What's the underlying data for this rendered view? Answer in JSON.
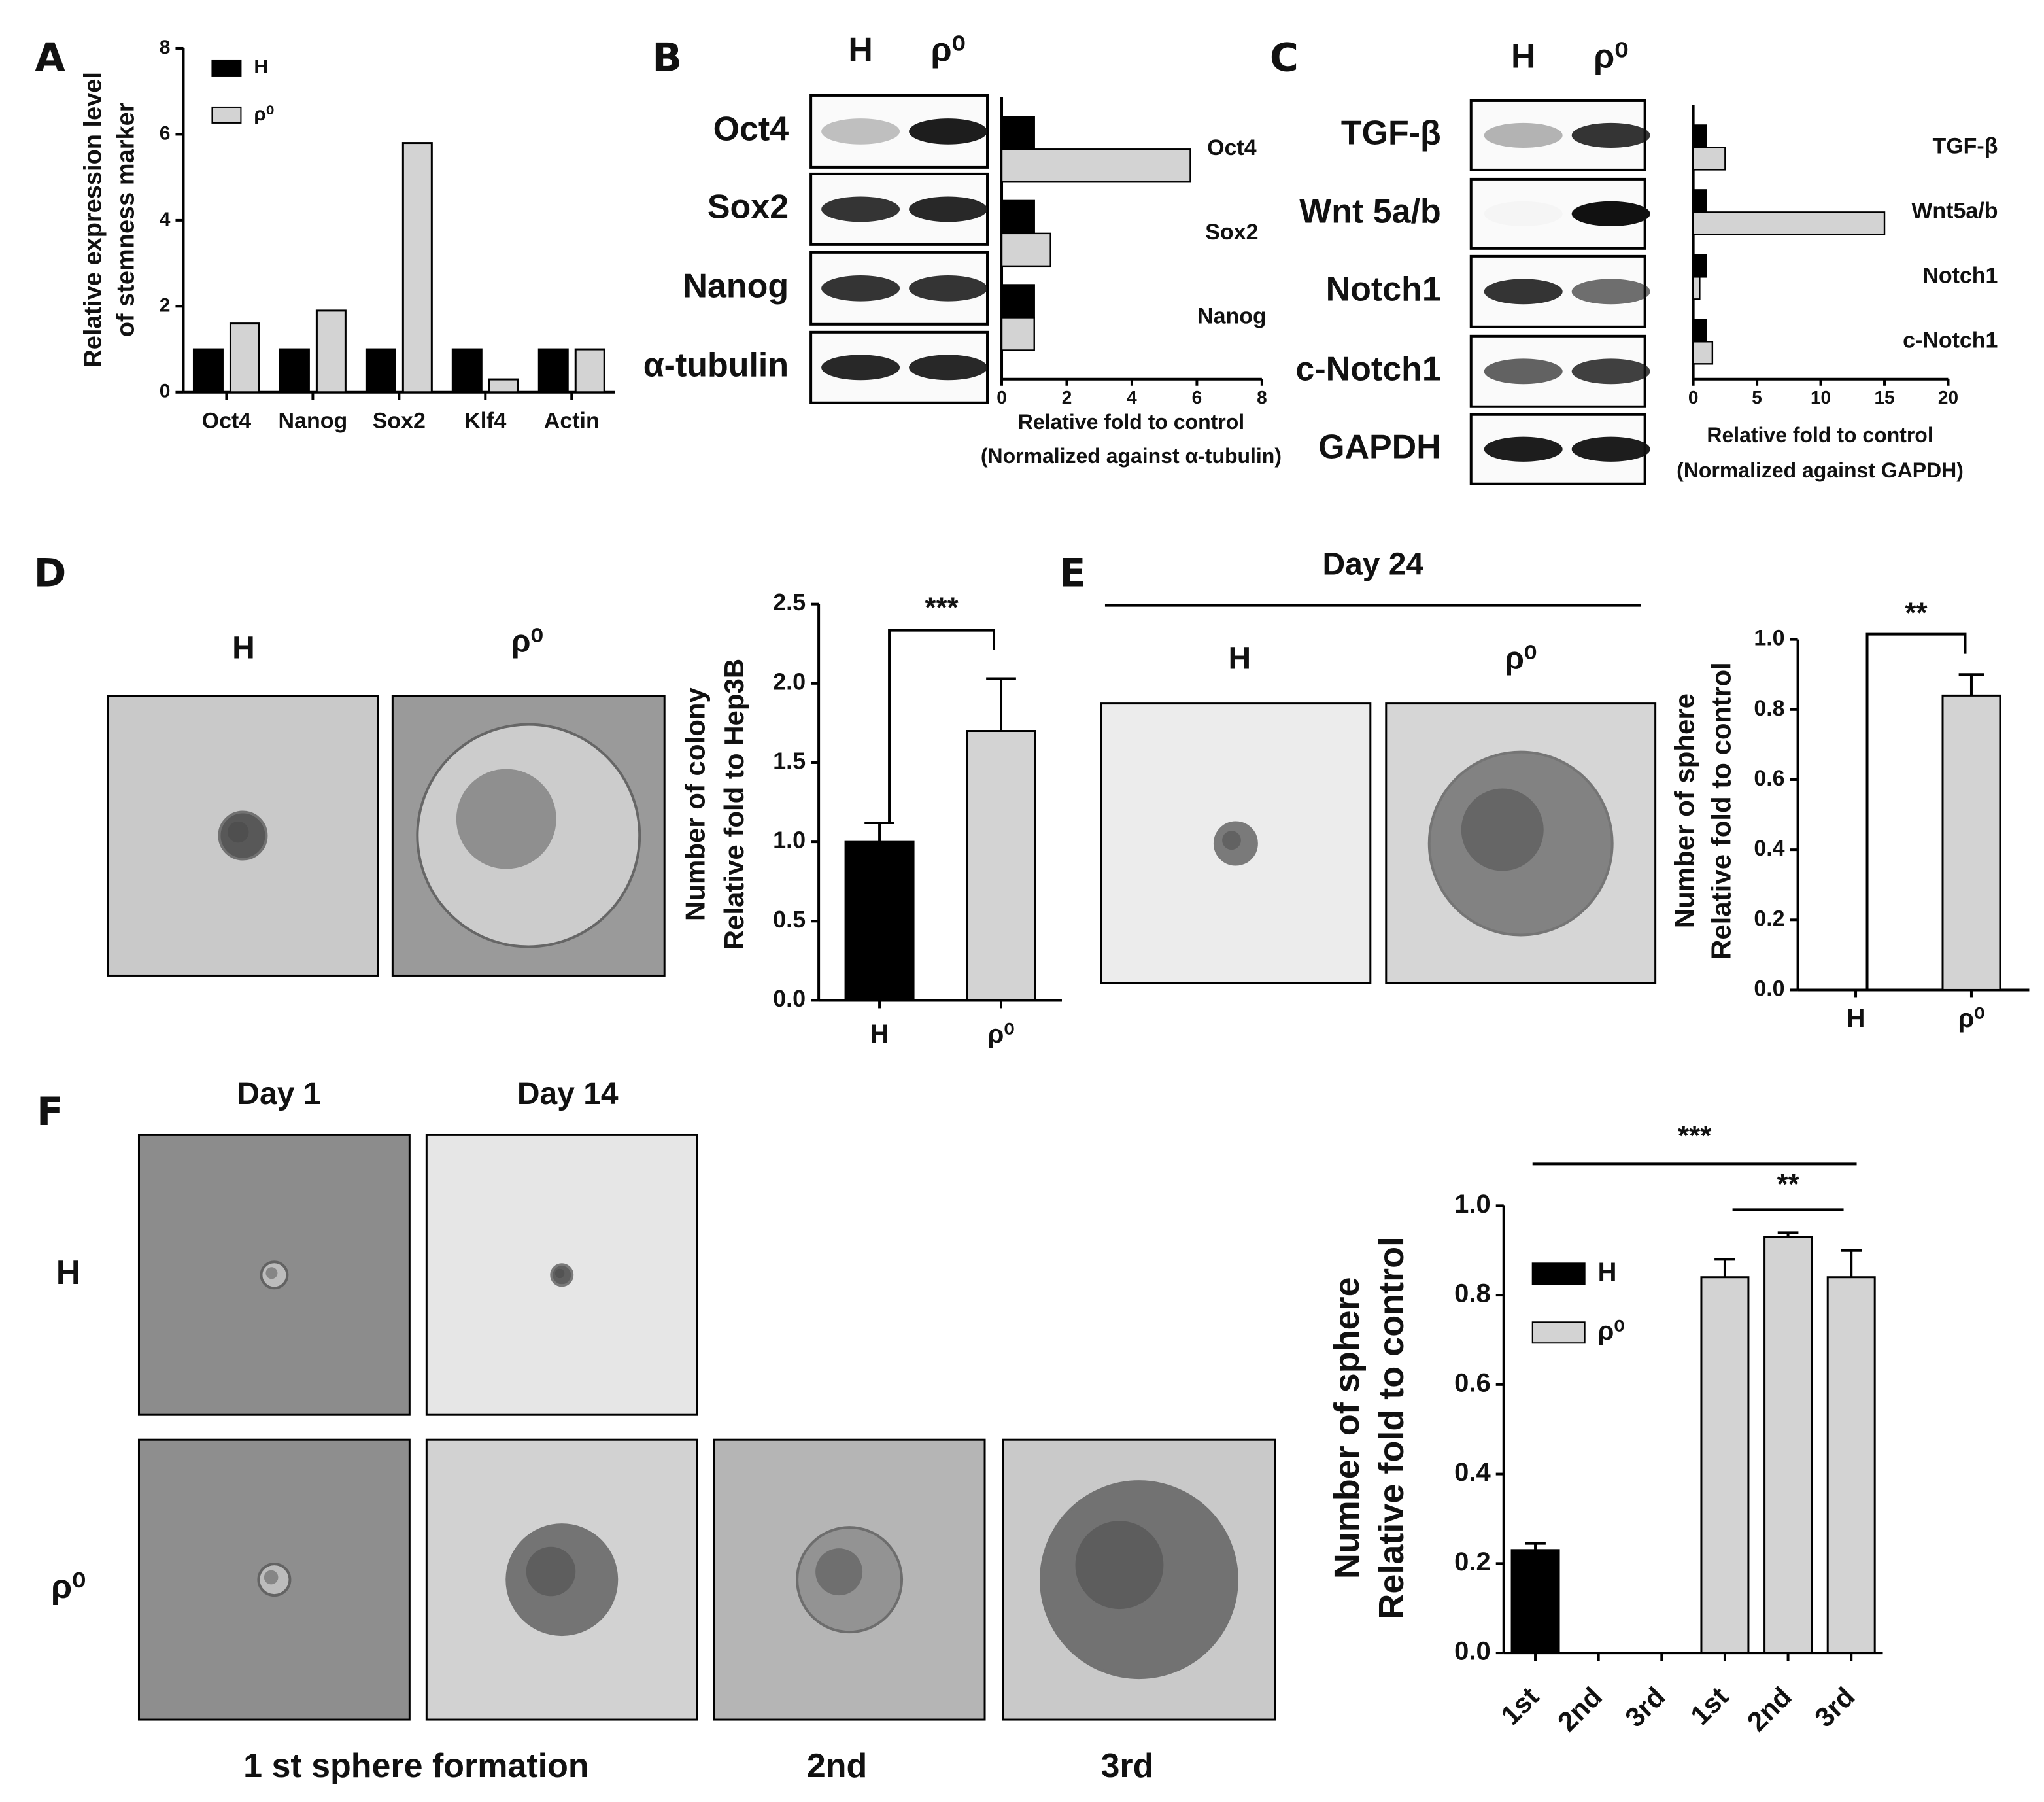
{
  "chart_data": [
    {
      "type": "bar",
      "panel": "A",
      "categories": [
        "Oct4",
        "Nanog",
        "Sox2",
        "Klf4",
        "Actin"
      ],
      "series": [
        {
          "name": "H",
          "color": "#000000",
          "values": [
            1,
            1,
            1,
            1,
            1
          ]
        },
        {
          "name": "ρ⁰",
          "color": "#d3d3d3",
          "values": [
            1.6,
            1.9,
            5.8,
            0.3,
            1.0
          ]
        }
      ],
      "ylim": [
        0,
        8
      ],
      "yticks": [
        0,
        2,
        4,
        6,
        8
      ],
      "ylabel": [
        "Relative expression level",
        "of stemness marker"
      ]
    },
    {
      "type": "barh",
      "panel": "B",
      "categories": [
        "Oct4",
        "Sox2",
        "Nanog"
      ],
      "series": [
        {
          "name": "H",
          "color": "#000000",
          "values": [
            1,
            1,
            1
          ]
        },
        {
          "name": "ρ⁰",
          "color": "#d3d3d3",
          "values": [
            5.8,
            1.5,
            1.0
          ]
        }
      ],
      "xlim": [
        0,
        8
      ],
      "xticks": [
        0,
        2,
        4,
        6,
        8
      ],
      "xlabel": [
        "Relative fold to control",
        "(Normalized against α-tubulin)"
      ],
      "blot": {
        "lanes": [
          "H",
          "ρ⁰"
        ],
        "rows": [
          "Oct4",
          "Sox2",
          "Nanog",
          "α-tubulin"
        ]
      }
    },
    {
      "type": "barh",
      "panel": "C",
      "categories": [
        "TGF-β",
        "Wnt5a/b",
        "Notch1",
        "c-Notch1"
      ],
      "series": [
        {
          "name": "H",
          "color": "#000000",
          "values": [
            1,
            1,
            1,
            1
          ]
        },
        {
          "name": "ρ⁰",
          "color": "#d3d3d3",
          "values": [
            2.5,
            15,
            0.5,
            1.5
          ]
        }
      ],
      "xlim": [
        0,
        20
      ],
      "xticks": [
        0,
        5,
        10,
        15,
        20
      ],
      "xlabel": [
        "Relative fold to control",
        "(Normalized against GAPDH)"
      ],
      "blot": {
        "lanes": [
          "H",
          "ρ⁰"
        ],
        "rows": [
          "TGF-β",
          "Wnt 5a/b",
          "Notch1",
          "c-Notch1",
          "GAPDH"
        ]
      }
    },
    {
      "type": "bar",
      "panel": "D",
      "categories": [
        "H",
        "ρ⁰"
      ],
      "values": [
        1.0,
        1.7
      ],
      "errors": [
        0.12,
        0.33
      ],
      "colors": [
        "#000000",
        "#d3d3d3"
      ],
      "ylim": [
        0,
        2.5
      ],
      "yticks": [
        {
          "value": 0,
          "label": "0.0"
        },
        0.5,
        {
          "value": 1,
          "label": "1.0"
        },
        1.5,
        {
          "value": 2,
          "label": "2.0"
        },
        2.5
      ],
      "ylabel": [
        "Number of colony",
        "Relative fold to Hep3B"
      ],
      "annotations": [
        "***"
      ],
      "images": {
        "columns": [
          "H",
          "ρ⁰"
        ]
      }
    },
    {
      "type": "bar",
      "panel": "E",
      "title": "Day 24",
      "categories": [
        "H",
        "ρ⁰"
      ],
      "values": [
        0,
        0.84
      ],
      "errors": [
        0,
        0.06
      ],
      "colors": [
        "#000000",
        "#d3d3d3"
      ],
      "ylim": [
        0,
        1
      ],
      "yticks": [
        {
          "value": 0,
          "label": "0.0"
        },
        0.2,
        0.4,
        0.6,
        0.8,
        {
          "value": 1,
          "label": "1.0"
        }
      ],
      "ylabel": [
        "Number of sphere",
        "Relative fold to control"
      ],
      "annotations": [
        "**"
      ],
      "images": {
        "columns": [
          "H",
          "ρ⁰"
        ]
      }
    },
    {
      "type": "bar",
      "panel": "F",
      "categories": [
        "1st",
        "2nd",
        "3rd",
        "1st",
        "2nd",
        "3rd"
      ],
      "series": [
        {
          "name": "H",
          "color": "#000000",
          "values": [
            0.23,
            null,
            null,
            null,
            null,
            null
          ],
          "errors": [
            0.015,
            null,
            null,
            null,
            null,
            null
          ]
        },
        {
          "name": "ρ⁰",
          "color": "#d3d3d3",
          "values": [
            null,
            null,
            null,
            0.84,
            0.93,
            0.84
          ],
          "errors": [
            null,
            null,
            null,
            0.04,
            0.01,
            0.06
          ]
        }
      ],
      "ylim": [
        0,
        1
      ],
      "yticks": [
        {
          "value": 0,
          "label": "0.0"
        },
        0.2,
        0.4,
        0.6,
        0.8,
        {
          "value": 1,
          "label": "1.0"
        }
      ],
      "ylabel": [
        "Number of sphere",
        "Relative fold to control"
      ],
      "annotations": [
        "***",
        "**"
      ],
      "images": {
        "columns": [
          "Day 1",
          "Day 14"
        ],
        "rows": [
          "H",
          "ρ⁰"
        ],
        "captions": [
          "1 st sphere formation",
          "2nd",
          "3rd"
        ]
      }
    }
  ]
}
